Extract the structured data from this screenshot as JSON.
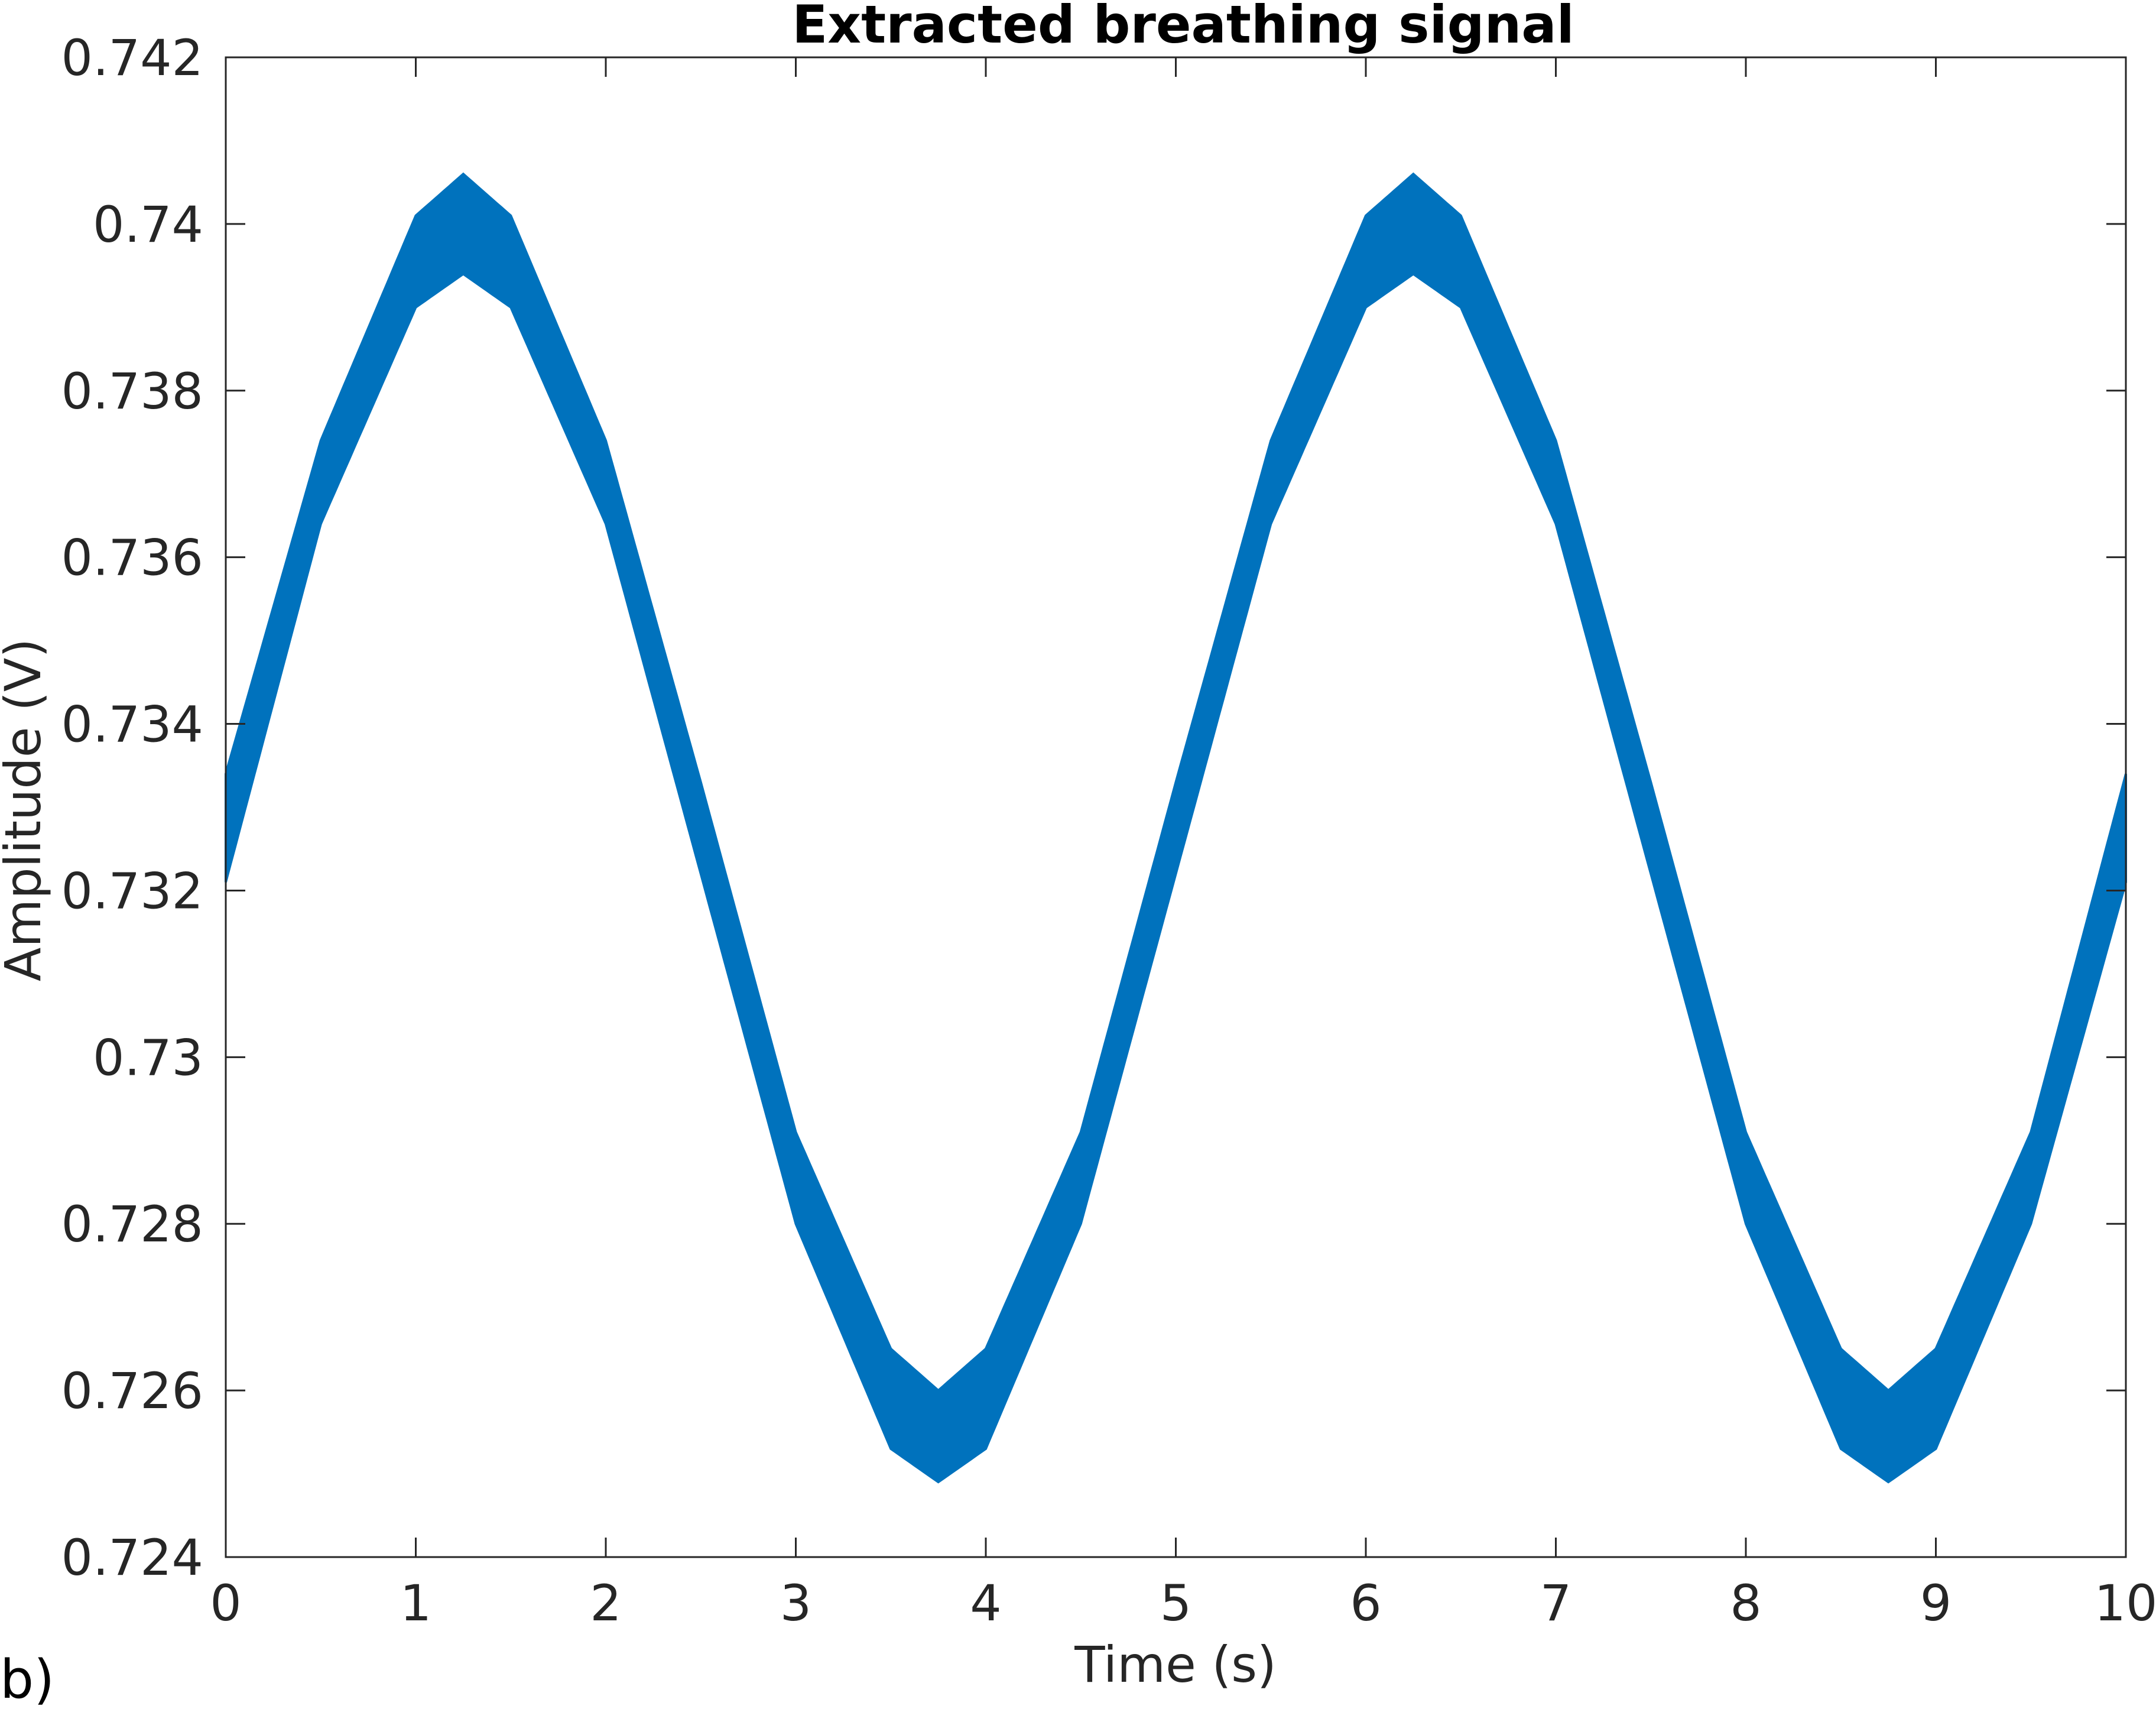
{
  "panel_label": "b)",
  "chart_data": {
    "type": "area",
    "title": "Extracted breathing signal",
    "xlabel": "Time (s)",
    "ylabel": "Amplitude (V)",
    "xlim": [
      0,
      10
    ],
    "ylim": [
      0.724,
      0.742
    ],
    "xticks": [
      0,
      1,
      2,
      3,
      4,
      5,
      6,
      7,
      8,
      9,
      10
    ],
    "xtick_labels": [
      "0",
      "1",
      "2",
      "3",
      "4",
      "5",
      "6",
      "7",
      "8",
      "9",
      "10"
    ],
    "yticks": [
      0.724,
      0.726,
      0.728,
      0.73,
      0.732,
      0.734,
      0.736,
      0.738,
      0.74,
      0.742
    ],
    "ytick_labels": [
      "0.724",
      "0.726",
      "0.728",
      "0.73",
      "0.732",
      "0.734",
      "0.736",
      "0.738",
      "0.74",
      "0.742"
    ],
    "grid": false,
    "color": "#0072BD",
    "series": [
      {
        "x": [
          0,
          0.5,
          1,
          1.25,
          1.5,
          2,
          2.5,
          3,
          3.5,
          3.75,
          4,
          4.5,
          5,
          5.5,
          6,
          6.25,
          6.5,
          7,
          7.5,
          8,
          8.5,
          8.75,
          9,
          9.5,
          10
        ],
        "upper": [
          0.7334,
          0.7374,
          0.7401,
          0.7406,
          0.7401,
          0.7374,
          0.7333,
          0.7291,
          0.7265,
          0.726,
          0.7265,
          0.7291,
          0.7333,
          0.7374,
          0.7401,
          0.7406,
          0.7401,
          0.7374,
          0.7333,
          0.7291,
          0.7265,
          0.726,
          0.7265,
          0.7291,
          0.7334
        ],
        "lower": [
          0.7321,
          0.7364,
          0.739,
          0.7394,
          0.739,
          0.7364,
          0.7322,
          0.728,
          0.7253,
          0.7249,
          0.7253,
          0.728,
          0.7322,
          0.7364,
          0.739,
          0.7394,
          0.739,
          0.7364,
          0.7322,
          0.728,
          0.7253,
          0.7249,
          0.7253,
          0.728,
          0.7321
        ]
      }
    ]
  }
}
